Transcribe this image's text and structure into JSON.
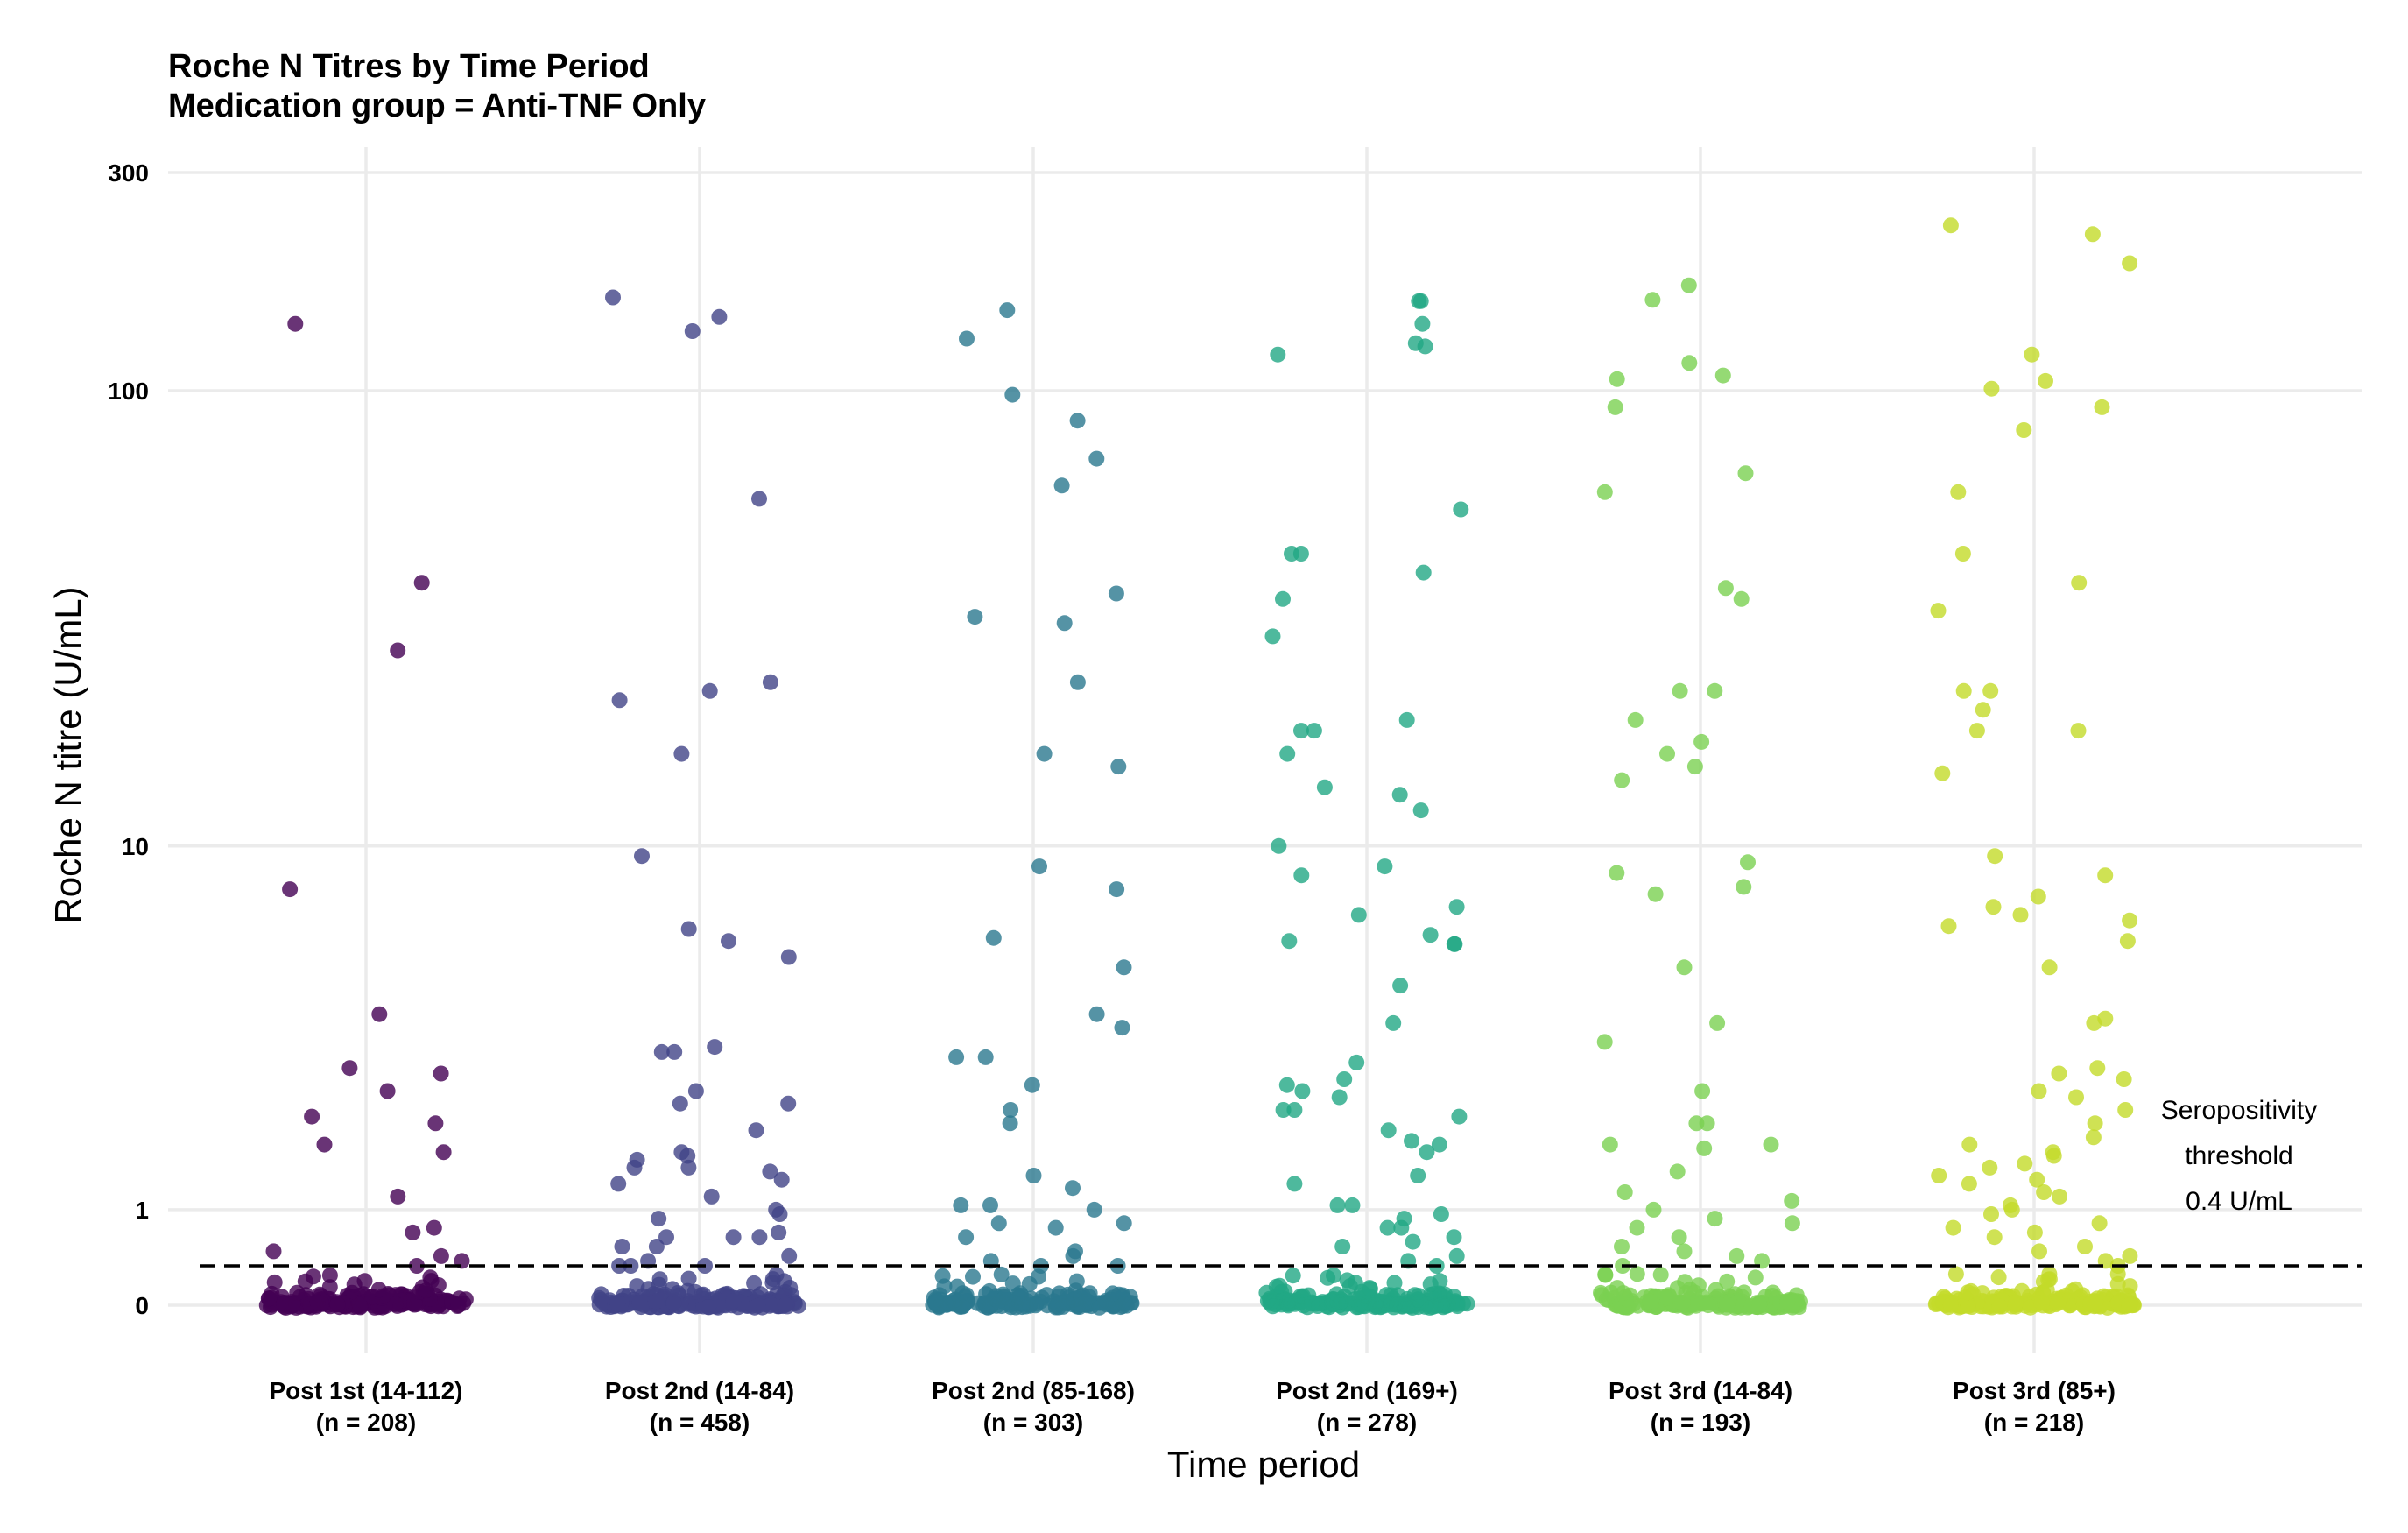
{
  "chart_data": {
    "type": "scatter",
    "title_line1": "Roche N Titres by Time Period",
    "title_line2": "Medication group = Anti-TNF Only",
    "xlabel": "Time period",
    "ylabel": "Roche N titre (U/mL)",
    "y_scale": "pseudo-log",
    "y_ticks": [
      0,
      1,
      10,
      100,
      300
    ],
    "y_tick_labels": [
      "0",
      "1",
      "10",
      "100",
      "300"
    ],
    "grid": true,
    "legend": "none",
    "threshold": {
      "value": 0.4,
      "label_lines": [
        "Seropositivity",
        "threshold",
        "0.4 U/mL"
      ]
    },
    "categories": [
      {
        "label": "Post 1st (14-112)",
        "n_label": "(n = 208)",
        "color": "#440154",
        "points": [
          8,
          27,
          38,
          140,
          4.1,
          3.0,
          2.9,
          2.6,
          2.2,
          2.1,
          1.8,
          1.7,
          1.15,
          0.8,
          0.75,
          0.55,
          0.5,
          0.45,
          0.4
        ]
      },
      {
        "label": "Post 2nd (14-84)",
        "n_label": "(n = 458)",
        "color": "#414487",
        "points": [
          160,
          145,
          135,
          58,
          23,
          22,
          21,
          16,
          9.5,
          6.5,
          6.1,
          5.6,
          3.4,
          3.3,
          3.3,
          2.6,
          2.4,
          2.4,
          2.0,
          1.7,
          1.65,
          1.6,
          1.5,
          1.5,
          1.45,
          1.35,
          1.3,
          1.15,
          1.0,
          0.95,
          0.9,
          0.75,
          0.7,
          0.7,
          0.7,
          0.6,
          0.6,
          0.5,
          0.45,
          0.4,
          0.4,
          0.4
        ]
      },
      {
        "label": "Post 2nd (85-168)",
        "n_label": "(n = 303)",
        "color": "#2A788E",
        "points": [
          150,
          130,
          98,
          86,
          71,
          62,
          36,
          32,
          31,
          23,
          16,
          15,
          9.0,
          8.0,
          6.2,
          5.3,
          4.1,
          3.8,
          3.2,
          3.2,
          2.7,
          2.3,
          2.1,
          1.4,
          1.25,
          1.05,
          1.05,
          1.0,
          0.85,
          0.85,
          0.8,
          0.7,
          0.55,
          0.5,
          0.45,
          0.4,
          0.4
        ]
      },
      {
        "label": "Post 2nd (169+)",
        "n_label": "(n = 278)",
        "color": "#22A884",
        "points": [
          157,
          157,
          140,
          127,
          125,
          120,
          55,
          44,
          44,
          40,
          35,
          29,
          19,
          18,
          18,
          16,
          13.5,
          13,
          12,
          10,
          9,
          8.6,
          7.3,
          7.0,
          6.3,
          6.1,
          6.0,
          6.0,
          4.8,
          3.9,
          3.1,
          2.8,
          2.6,
          2.5,
          2.3,
          2.2,
          2.7,
          2.3,
          2.0,
          1.85,
          1.8,
          1.7,
          1.4,
          1.3,
          1.05,
          1.05,
          0.95,
          0.9,
          0.8,
          0.8,
          0.7,
          0.65,
          0.6,
          0.5,
          0.45,
          0.4
        ]
      },
      {
        "label": "Post 3rd (14-84)",
        "n_label": "(n = 193)",
        "color": "#7AD151",
        "points": [
          170,
          158,
          115,
          108,
          106,
          92,
          66,
          60,
          37,
          35,
          22,
          22,
          19,
          17,
          16,
          15,
          14,
          9.2,
          8.7,
          8.1,
          7.8,
          5.3,
          3.9,
          3.5,
          2.6,
          2.1,
          2.1,
          1.8,
          1.8,
          1.75,
          1.45,
          1.2,
          1.1,
          1.0,
          0.9,
          0.85,
          0.8,
          0.7,
          0.6,
          0.55,
          0.5,
          0.45,
          0.4
        ]
      },
      {
        "label": "Post 3rd (85+)",
        "n_label": "(n = 218)",
        "color": "#C3DB29",
        "points": [
          230,
          220,
          190,
          120,
          105,
          101,
          92,
          82,
          60,
          44,
          38,
          33,
          22,
          22,
          20,
          18,
          18,
          14.5,
          9.5,
          8.6,
          7.7,
          7.3,
          7.0,
          6.8,
          6.6,
          6.1,
          5.3,
          4.0,
          3.9,
          3.0,
          2.9,
          2.8,
          2.6,
          2.5,
          2.3,
          2.1,
          1.9,
          1.8,
          1.7,
          1.65,
          1.55,
          1.5,
          1.4,
          1.35,
          1.3,
          1.2,
          1.15,
          1.05,
          1.0,
          0.95,
          0.85,
          0.8,
          0.75,
          0.7,
          0.6,
          0.55,
          0.5,
          0.45,
          0.4
        ]
      }
    ]
  }
}
